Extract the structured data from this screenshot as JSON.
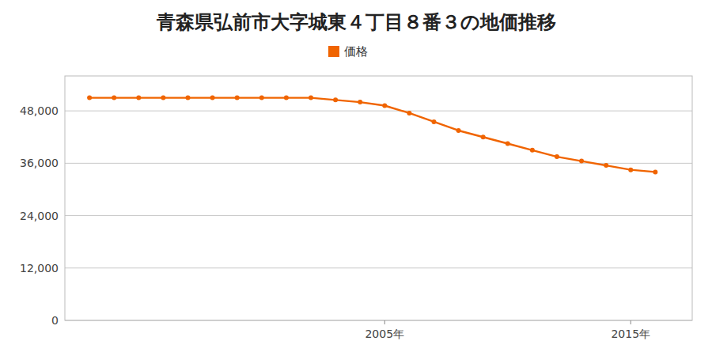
{
  "chart_data": {
    "type": "line",
    "title": "青森県弘前市大字城東４丁目８番３の地価推移",
    "x": [
      1993,
      1994,
      1995,
      1996,
      1997,
      1998,
      1999,
      2000,
      2001,
      2002,
      2003,
      2004,
      2005,
      2006,
      2007,
      2008,
      2009,
      2010,
      2011,
      2012,
      2013,
      2014,
      2015,
      2016
    ],
    "series": [
      {
        "name": "価格",
        "color": "#f06400",
        "marker": "circle",
        "values": [
          51000,
          51000,
          51000,
          51000,
          51000,
          51000,
          51000,
          51000,
          51000,
          51000,
          50500,
          50000,
          49200,
          47500,
          45500,
          43500,
          42000,
          40500,
          39000,
          37500,
          36500,
          35500,
          34500,
          34000
        ]
      }
    ],
    "xlim": [
      1992,
      2017.5
    ],
    "xticks": [
      {
        "value": 2005,
        "label": "2005年"
      },
      {
        "value": 2015,
        "label": "2015年"
      }
    ],
    "ylim": [
      0,
      56000
    ],
    "yticks": [
      0,
      {
        "value": 12000,
        "label": "12,000"
      },
      {
        "value": 24000,
        "label": "24,000"
      },
      {
        "value": 36000,
        "label": "36,000"
      },
      {
        "value": 48000,
        "label": "48,000"
      }
    ],
    "grid": true,
    "legend": "top"
  }
}
